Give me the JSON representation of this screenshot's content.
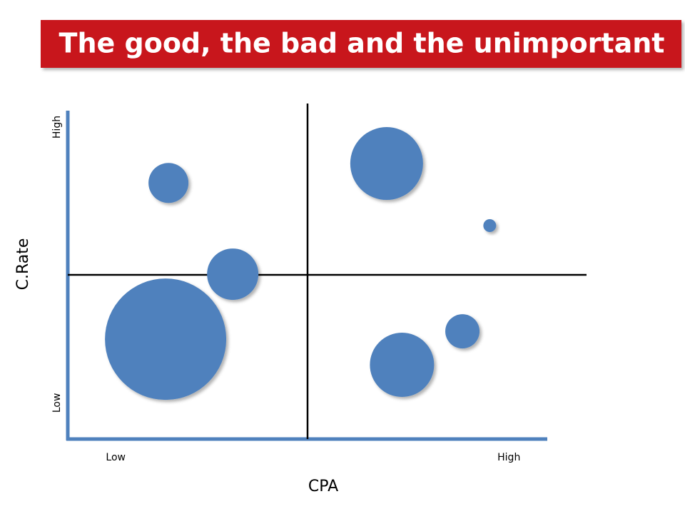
{
  "chart_data": {
    "type": "bubble",
    "title": "The good, the bad and the unimportant",
    "xlabel": "CPA",
    "ylabel": "C.Rate",
    "xlim": [
      0,
      10
    ],
    "ylim": [
      0,
      10
    ],
    "xticks": [
      {
        "value": 1,
        "label": "Low"
      },
      {
        "value": 9.2,
        "label": "High"
      }
    ],
    "yticks": [
      {
        "value": 1.1,
        "label": "Low"
      },
      {
        "value": 9.5,
        "label": "High"
      }
    ],
    "dividers": {
      "x": 5,
      "y": 5
    },
    "color": "#4f81bd",
    "x": [
      2.1,
      6.65,
      8.8,
      3.44,
      2.04,
      8.23,
      6.97
    ],
    "values": [
      7.8,
      8.39,
      6.5,
      5.02,
      3.04,
      3.28,
      2.26
    ],
    "sizes": [
      28,
      51,
      9,
      36,
      85,
      24,
      45
    ]
  }
}
